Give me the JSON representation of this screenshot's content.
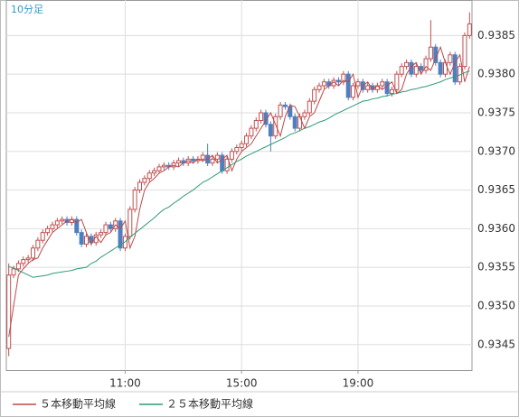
{
  "chart_data": {
    "type": "candlestick",
    "title": "10分足",
    "up_color": "#c05050",
    "down_color": "#4f7fbf",
    "grid": true,
    "ylim": [
      0.93417,
      0.93896
    ],
    "yticks": [
      0.9345,
      {
        "value": 0.935,
        "label": "0.9350"
      },
      0.9355,
      {
        "value": 0.936,
        "label": "0.9360"
      },
      0.9365,
      {
        "value": 0.937,
        "label": "0.9370"
      },
      0.9375,
      {
        "value": 0.938,
        "label": "0.9380"
      },
      0.9385
    ],
    "categories": [
      null,
      null,
      null,
      null,
      null,
      null,
      null,
      null,
      null,
      null,
      null,
      null,
      null,
      null,
      null,
      null,
      null,
      null,
      null,
      null,
      null,
      null,
      null,
      null,
      "11:00",
      null,
      null,
      null,
      null,
      null,
      null,
      null,
      null,
      null,
      null,
      null,
      null,
      null,
      null,
      null,
      null,
      null,
      null,
      null,
      null,
      null,
      null,
      null,
      "15:00",
      null,
      null,
      null,
      null,
      null,
      null,
      null,
      null,
      null,
      null,
      null,
      null,
      null,
      null,
      null,
      null,
      null,
      null,
      null,
      null,
      null,
      null,
      null,
      "19:00",
      null,
      null,
      null,
      null,
      null,
      null,
      null,
      null,
      null,
      null,
      null,
      null,
      null,
      null,
      null,
      null,
      null,
      null,
      null,
      null,
      null,
      null,
      null
    ],
    "open": [
      0.93445,
      0.9354,
      0.93548,
      0.93555,
      0.9356,
      0.93562,
      0.93575,
      0.93585,
      0.93595,
      0.936,
      0.93605,
      0.9361,
      0.93612,
      0.93608,
      0.93612,
      0.93595,
      0.9358,
      0.9359,
      0.93582,
      0.93592,
      0.93595,
      0.93605,
      0.936,
      0.9361,
      0.93575,
      0.9359,
      0.93625,
      0.9365,
      0.9366,
      0.93665,
      0.93672,
      0.93675,
      0.9368,
      0.93682,
      0.9368,
      0.93685,
      0.93688,
      0.93685,
      0.9369,
      0.93688,
      0.9369,
      0.93695,
      0.93685,
      0.9369,
      0.93695,
      0.93675,
      0.9369,
      0.937,
      0.93705,
      0.9371,
      0.9372,
      0.9373,
      0.9374,
      0.9375,
      0.93735,
      0.9372,
      0.93745,
      0.9376,
      0.93758,
      0.93745,
      0.9373,
      0.93745,
      0.9375,
      0.93765,
      0.9378,
      0.93785,
      0.9379,
      0.93785,
      0.93792,
      0.9379,
      0.938,
      0.9377,
      0.93785,
      0.9379,
      0.9378,
      0.93785,
      0.9378,
      0.93785,
      0.9379,
      0.93775,
      0.9378,
      0.938,
      0.9381,
      0.93815,
      0.938,
      0.9381,
      0.93805,
      0.9382,
      0.93835,
      0.93815,
      0.938,
      0.93815,
      0.93825,
      0.9379,
      0.9381,
      0.9385
    ],
    "high": [
      0.93555,
      0.93552,
      0.93559,
      0.93564,
      0.93566,
      0.93579,
      0.93589,
      0.93599,
      0.93604,
      0.93609,
      0.93614,
      0.93616,
      0.93616,
      0.93616,
      0.93616,
      0.93599,
      0.93594,
      0.93594,
      0.93596,
      0.93599,
      0.93609,
      0.93609,
      0.93614,
      0.93614,
      0.93594,
      0.93629,
      0.93654,
      0.93664,
      0.93669,
      0.93676,
      0.93679,
      0.93684,
      0.93686,
      0.93686,
      0.93689,
      0.93692,
      0.93692,
      0.93694,
      0.93694,
      0.93694,
      0.93699,
      0.9371,
      0.93694,
      0.93699,
      0.93699,
      0.93694,
      0.93704,
      0.93709,
      0.93714,
      0.93724,
      0.93734,
      0.93744,
      0.93754,
      0.93754,
      0.93739,
      0.93749,
      0.93764,
      0.93764,
      0.93762,
      0.93749,
      0.93749,
      0.93754,
      0.93769,
      0.93784,
      0.93789,
      0.93794,
      0.93794,
      0.93796,
      0.93796,
      0.93804,
      0.93804,
      0.93789,
      0.93794,
      0.93794,
      0.93789,
      0.93789,
      0.93789,
      0.93794,
      0.93794,
      0.93784,
      0.93804,
      0.93814,
      0.93819,
      0.93819,
      0.93814,
      0.93814,
      0.93824,
      0.9387,
      0.93839,
      0.93819,
      0.93819,
      0.93829,
      0.93829,
      0.93814,
      0.93854,
      0.9388
    ],
    "low": [
      0.93435,
      0.93536,
      0.93544,
      0.93551,
      0.93556,
      0.93558,
      0.93571,
      0.93581,
      0.93591,
      0.93596,
      0.93601,
      0.93606,
      0.93604,
      0.93604,
      0.93591,
      0.93576,
      0.93576,
      0.93578,
      0.93578,
      0.93588,
      0.93591,
      0.93596,
      0.93596,
      0.93571,
      0.93571,
      0.93586,
      0.93621,
      0.93646,
      0.93656,
      0.93661,
      0.93668,
      0.93671,
      0.93676,
      0.93676,
      0.93676,
      0.93681,
      0.93681,
      0.93681,
      0.93684,
      0.93684,
      0.93686,
      0.93681,
      0.93681,
      0.93686,
      0.93671,
      0.93671,
      0.93686,
      0.93696,
      0.93701,
      0.93706,
      0.93716,
      0.93726,
      0.93736,
      0.93731,
      0.937,
      0.93716,
      0.93741,
      0.93754,
      0.93741,
      0.93726,
      0.93726,
      0.93741,
      0.93746,
      0.93761,
      0.93776,
      0.93781,
      0.93781,
      0.93781,
      0.93786,
      0.93786,
      0.93766,
      0.93766,
      0.93781,
      0.93776,
      0.93776,
      0.93776,
      0.93776,
      0.93781,
      0.93771,
      0.93771,
      0.93776,
      0.93796,
      0.93806,
      0.93796,
      0.93796,
      0.93801,
      0.93801,
      0.93816,
      0.93811,
      0.93796,
      0.93796,
      0.93811,
      0.93786,
      0.93786,
      0.93806,
      0.93846
    ],
    "close": [
      0.9354,
      0.93548,
      0.93555,
      0.9356,
      0.93562,
      0.93575,
      0.93585,
      0.93595,
      0.936,
      0.93605,
      0.9361,
      0.93612,
      0.93608,
      0.93612,
      0.93595,
      0.9358,
      0.9359,
      0.93582,
      0.93592,
      0.93595,
      0.93605,
      0.936,
      0.9361,
      0.93575,
      0.9359,
      0.93625,
      0.9365,
      0.9366,
      0.93665,
      0.93672,
      0.93675,
      0.9368,
      0.93682,
      0.9368,
      0.93685,
      0.93688,
      0.93685,
      0.9369,
      0.93688,
      0.9369,
      0.93695,
      0.93685,
      0.9369,
      0.93695,
      0.93675,
      0.9369,
      0.937,
      0.93705,
      0.9371,
      0.9372,
      0.9373,
      0.9374,
      0.9375,
      0.93735,
      0.9372,
      0.93745,
      0.9376,
      0.93758,
      0.93745,
      0.9373,
      0.93745,
      0.9375,
      0.93765,
      0.9378,
      0.93785,
      0.9379,
      0.93785,
      0.93792,
      0.9379,
      0.938,
      0.9377,
      0.93785,
      0.9379,
      0.9378,
      0.93785,
      0.9378,
      0.93785,
      0.9379,
      0.93775,
      0.9378,
      0.938,
      0.9381,
      0.93815,
      0.938,
      0.9381,
      0.93805,
      0.9382,
      0.93835,
      0.93815,
      0.938,
      0.93815,
      0.93825,
      0.9379,
      0.9381,
      0.9385,
      0.93865
    ],
    "series": [
      {
        "name": "５本移動平均線",
        "color": "#c04848",
        "values": [
          0.9346,
          0.935,
          0.9354,
          0.93548,
          0.93555,
          0.9356,
          0.93562,
          0.93575,
          0.93585,
          0.93595,
          0.936,
          0.93605,
          0.9361,
          0.93612,
          0.93608,
          0.93612,
          0.93595,
          0.9358,
          0.9359,
          0.93582,
          0.93592,
          0.93595,
          0.93605,
          0.936,
          0.9361,
          0.93575,
          0.9359,
          0.93625,
          0.9365,
          0.9366,
          0.93665,
          0.93672,
          0.93675,
          0.9368,
          0.93682,
          0.9368,
          0.93685,
          0.93688,
          0.93685,
          0.9369,
          0.93688,
          0.9369,
          0.93695,
          0.93685,
          0.9369,
          0.93695,
          0.93675,
          0.9369,
          0.937,
          0.93705,
          0.9371,
          0.9372,
          0.9373,
          0.9374,
          0.9375,
          0.93735,
          0.9372,
          0.93745,
          0.9376,
          0.93758,
          0.93745,
          0.9373,
          0.93745,
          0.9375,
          0.93765,
          0.9378,
          0.93785,
          0.9379,
          0.93785,
          0.93792,
          0.9379,
          0.938,
          0.9377,
          0.93785,
          0.9379,
          0.9378,
          0.93785,
          0.9378,
          0.93785,
          0.9379,
          0.93775,
          0.9378,
          0.938,
          0.9381,
          0.93815,
          0.938,
          0.9381,
          0.93805,
          0.9382,
          0.93835,
          0.93815,
          0.938,
          0.93815,
          0.93825,
          0.9379,
          0.9381
        ]
      },
      {
        "name": "２５本移動平均線",
        "color": "#2e9a78",
        "values": [
          0.93551,
          0.93549,
          0.93546,
          0.93543,
          0.9354,
          0.93537,
          0.93538,
          0.93539,
          0.9354,
          0.93542,
          0.93543,
          0.93544,
          0.93545,
          0.93546,
          0.93548,
          0.93549,
          0.9355,
          0.93555,
          0.93558,
          0.93563,
          0.93567,
          0.93571,
          0.93575,
          0.93579,
          0.93583,
          0.93589,
          0.93594,
          0.93599,
          0.93604,
          0.93609,
          0.93614,
          0.9362,
          0.93625,
          0.93628,
          0.93633,
          0.93637,
          0.93642,
          0.93646,
          0.9365,
          0.93655,
          0.9366,
          0.93663,
          0.93667,
          0.93671,
          0.93675,
          0.93679,
          0.93683,
          0.93687,
          0.9369,
          0.93694,
          0.93697,
          0.937,
          0.93703,
          0.93706,
          0.93709,
          0.93712,
          0.93715,
          0.93718,
          0.93722,
          0.93724,
          0.93727,
          0.9373,
          0.93732,
          0.93735,
          0.93738,
          0.9374,
          0.93743,
          0.93747,
          0.9375,
          0.93753,
          0.93756,
          0.93759,
          0.93762,
          0.93765,
          0.93766,
          0.93768,
          0.93769,
          0.93771,
          0.93772,
          0.93774,
          0.93775,
          0.93777,
          0.93778,
          0.9378,
          0.93781,
          0.93783,
          0.93784,
          0.93786,
          0.93788,
          0.9379,
          0.93793,
          0.93795,
          0.93797,
          0.93799,
          0.93802,
          0.93804
        ]
      }
    ]
  }
}
